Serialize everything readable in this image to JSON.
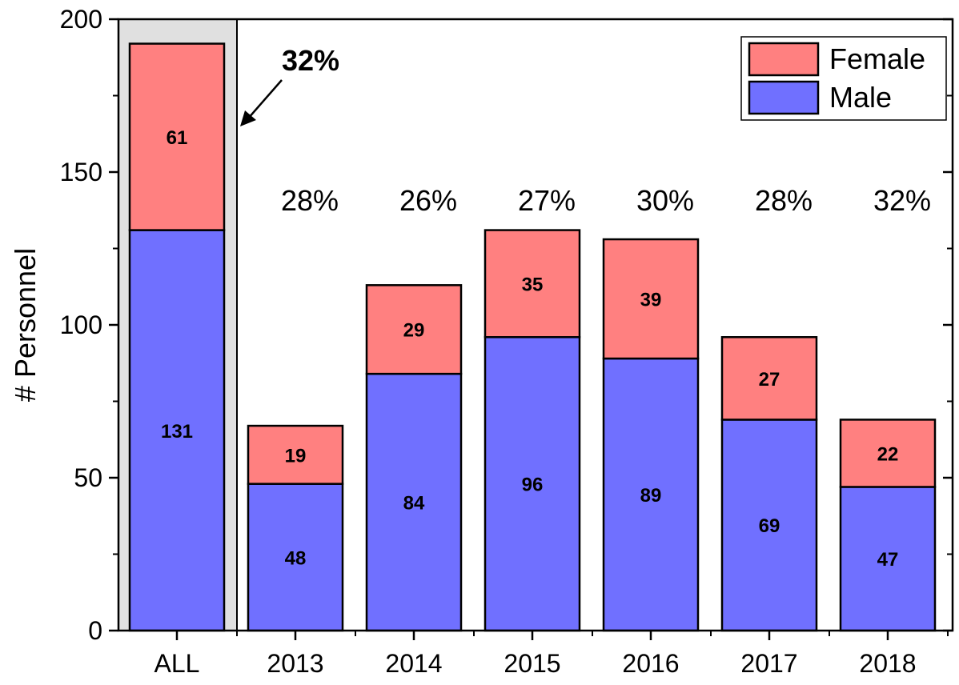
{
  "chart_data": {
    "type": "bar",
    "stacked": true,
    "categories": [
      "ALL",
      "2013",
      "2014",
      "2015",
      "2016",
      "2017",
      "2018"
    ],
    "series": [
      {
        "name": "Male",
        "color": "#7070ff",
        "values": [
          131,
          48,
          84,
          96,
          89,
          69,
          47
        ]
      },
      {
        "name": "Female",
        "color": "#ff8080",
        "values": [
          61,
          19,
          29,
          35,
          39,
          27,
          22
        ]
      }
    ],
    "segment_labels": {
      "Male": [
        "131",
        "48",
        "84",
        "96",
        "89",
        "69",
        "47"
      ],
      "Female": [
        "61",
        "19",
        "29",
        "35",
        "39",
        "27",
        "22"
      ]
    },
    "percent_labels": [
      "32%",
      "28%",
      "26%",
      "27%",
      "30%",
      "28%",
      "32%"
    ],
    "ylabel": "# Personnel",
    "xlabel": "",
    "ylim": [
      0,
      200
    ],
    "yticks": [
      0,
      50,
      100,
      150,
      200
    ],
    "legend": {
      "placement": "top-right",
      "entries": [
        "Female",
        "Male"
      ]
    },
    "highlight_category": "ALL",
    "highlight_color": "#e0e0e0"
  }
}
